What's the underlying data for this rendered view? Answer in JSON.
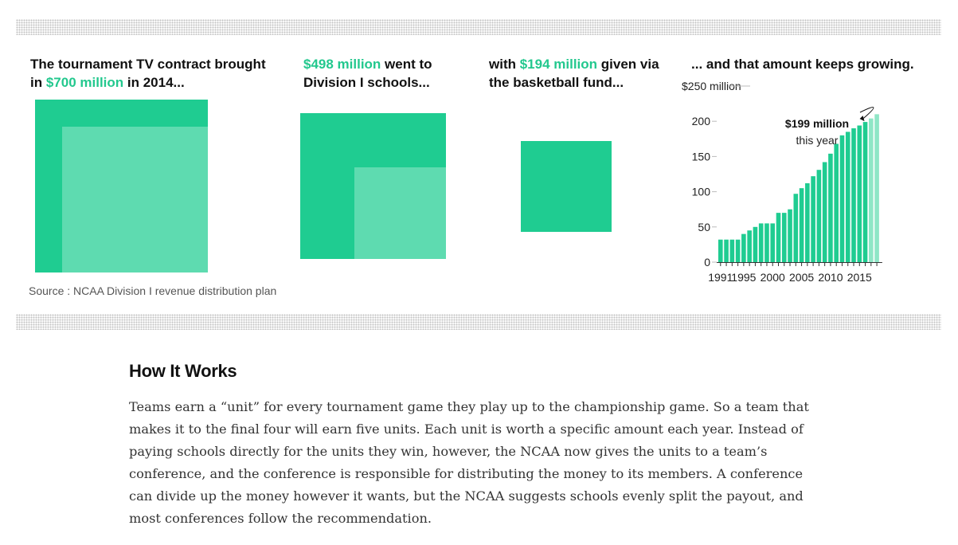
{
  "captions": {
    "c1": {
      "pre": "The tournament TV contract brought in ",
      "hl": "$700 million",
      "post": " in 2014..."
    },
    "c2": {
      "pre": "",
      "hl": "$498 million",
      "post": " went to Division I schools..."
    },
    "c3": {
      "pre": "with ",
      "hl": "$194 million",
      "post": " given via the basketball fund..."
    },
    "c4": {
      "pre": "... and that amount keeps growing.",
      "hl": "",
      "post": ""
    }
  },
  "source": "Source : NCAA Division I revenue distribution plan",
  "how_it_works": {
    "title": "How It Works",
    "body": "Teams earn a “unit” for every tournament game they play up to the championship game. So a team that makes it to the final four will earn five units. Each unit is worth a specific amount each year. Instead of paying schools directly for the units they win, however, the NCAA now gives the units to a team’s conference, and the conference is responsible for distributing the money to its members. A conference can divide up the money however it wants, but the NCAA suggests schools evenly split the payout, and most conferences follow the recommendation."
  },
  "colors": {
    "accent": "#23c88e",
    "bar": "#1fcc91",
    "bar_future": "#8fe6c6",
    "square_light": "#5edbb0"
  },
  "chart_data": [
    {
      "type": "area",
      "description_values": [
        {
          "label": "$700 million",
          "value": 700
        },
        {
          "label": "$498 million",
          "value": 498
        },
        {
          "label": "$194 million",
          "value": 194
        }
      ]
    },
    {
      "type": "bar",
      "x": [
        1991,
        1992,
        1993,
        1994,
        1995,
        1996,
        1997,
        1998,
        1999,
        2000,
        2001,
        2002,
        2003,
        2004,
        2005,
        2006,
        2007,
        2008,
        2009,
        2010,
        2011,
        2012,
        2013,
        2014,
        2015,
        2016,
        2017,
        2018
      ],
      "values": [
        32,
        32,
        32,
        32,
        40,
        45,
        50,
        55,
        55,
        55,
        70,
        70,
        75,
        97,
        105,
        112,
        122,
        131,
        142,
        154,
        168,
        180,
        185,
        190,
        194,
        199,
        204,
        210
      ],
      "projected_from_index": 26,
      "xticks": [
        "1991",
        "1995",
        "2000",
        "2005",
        "2010",
        "2015"
      ],
      "yticks": [
        {
          "value": 0,
          "label": "0"
        },
        {
          "value": 50,
          "label": "50"
        },
        {
          "value": 100,
          "label": "100"
        },
        {
          "value": 150,
          "label": "150"
        },
        {
          "value": 200,
          "label": "200"
        },
        {
          "value": 250,
          "label": "$250 million"
        }
      ],
      "ylim": [
        0,
        250
      ],
      "annotation": {
        "line1": "$199 million",
        "line2": "this year",
        "year": 2016
      }
    }
  ]
}
